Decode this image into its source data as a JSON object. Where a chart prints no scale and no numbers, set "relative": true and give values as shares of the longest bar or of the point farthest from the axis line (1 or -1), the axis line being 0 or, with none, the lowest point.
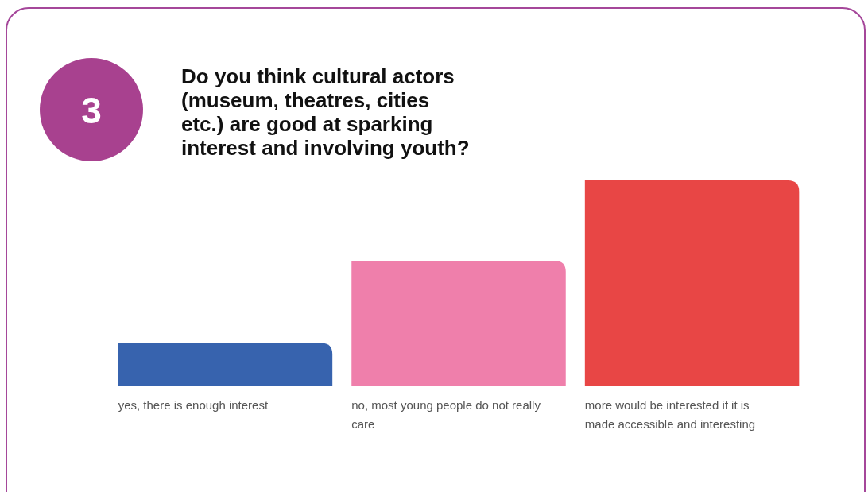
{
  "chart_data": {
    "type": "bar",
    "title": "Do you think cultural actors (museum, theatres, cities etc.) are good at sparking interest and involving youth?",
    "annotations": [
      "3"
    ],
    "relative": true,
    "categories": [
      "yes, there is enough interest",
      "no, most young people do not really care",
      "more would be interested if it is made accessible and interesting"
    ],
    "values": [
      0.21,
      0.61,
      1
    ],
    "colors": [
      "#3763ae",
      "#ef7fab",
      "#e84645"
    ]
  }
}
